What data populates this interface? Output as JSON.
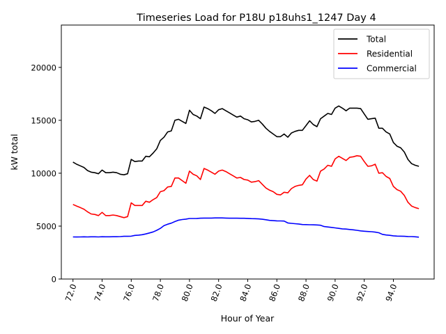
{
  "chart_data": {
    "type": "line",
    "title": "Timeseries Load for P18U p18uhs1_1247  Day 4",
    "xlabel": "Hour of Year",
    "ylabel": "kW total",
    "xlim": [
      71.2,
      96.8
    ],
    "ylim": [
      0,
      24000
    ],
    "xticks": [
      72,
      74,
      76,
      78,
      80,
      82,
      84,
      86,
      88,
      90,
      92,
      94
    ],
    "xtick_labels": [
      "72.0",
      "74.0",
      "76.0",
      "78.0",
      "80.0",
      "82.0",
      "84.0",
      "86.0",
      "88.0",
      "90.0",
      "92.0",
      "94.0"
    ],
    "yticks": [
      0,
      5000,
      10000,
      15000,
      20000
    ],
    "ytick_labels": [
      "0",
      "5000",
      "10000",
      "15000",
      "20000"
    ],
    "legend_position": "top-right",
    "x": [
      72.0,
      72.25,
      72.5,
      72.75,
      73.0,
      73.25,
      73.5,
      73.75,
      74.0,
      74.25,
      74.5,
      74.75,
      75.0,
      75.25,
      75.5,
      75.75,
      76.0,
      76.25,
      76.5,
      76.75,
      77.0,
      77.25,
      77.5,
      77.75,
      78.0,
      78.25,
      78.5,
      78.75,
      79.0,
      79.25,
      79.5,
      79.75,
      80.0,
      80.25,
      80.5,
      80.75,
      81.0,
      81.25,
      81.5,
      81.75,
      82.0,
      82.25,
      82.5,
      82.75,
      83.0,
      83.25,
      83.5,
      83.75,
      84.0,
      84.25,
      84.5,
      84.75,
      85.0,
      85.25,
      85.5,
      85.75,
      86.0,
      86.25,
      86.5,
      86.75,
      87.0,
      87.25,
      87.5,
      87.75,
      88.0,
      88.25,
      88.5,
      88.75,
      89.0,
      89.25,
      89.5,
      89.75,
      90.0,
      90.25,
      90.5,
      90.75,
      91.0,
      91.25,
      91.5,
      91.75,
      92.0,
      92.25,
      92.5,
      92.75,
      93.0,
      93.25,
      93.5,
      93.75,
      94.0,
      94.25,
      94.5,
      94.75,
      95.0,
      95.25,
      95.5,
      95.75
    ],
    "series": [
      {
        "name": "Total",
        "color": "#000000",
        "values": [
          11050,
          10850,
          10700,
          10550,
          10250,
          10100,
          10050,
          9950,
          10300,
          10050,
          10050,
          10100,
          10050,
          9900,
          9850,
          9950,
          11300,
          11100,
          11150,
          11150,
          11600,
          11550,
          11900,
          12300,
          13100,
          13400,
          13900,
          14000,
          15000,
          15100,
          14900,
          14700,
          15950,
          15550,
          15400,
          15150,
          16250,
          16100,
          15900,
          15650,
          16000,
          16100,
          15900,
          15700,
          15500,
          15300,
          15400,
          15150,
          15050,
          14850,
          14900,
          15000,
          14650,
          14250,
          13950,
          13700,
          13450,
          13450,
          13700,
          13400,
          13800,
          13950,
          14050,
          14050,
          14500,
          14950,
          14600,
          14400,
          15150,
          15400,
          15650,
          15550,
          16150,
          16350,
          16150,
          15900,
          16150,
          16150,
          16150,
          16100,
          15600,
          15100,
          15150,
          15200,
          14250,
          14250,
          13900,
          13700,
          12900,
          12550,
          12400,
          12000,
          11300,
          10900,
          10750,
          10650
        ]
      },
      {
        "name": "Residential",
        "color": "#ff0000",
        "values": [
          7050,
          6900,
          6750,
          6600,
          6350,
          6150,
          6100,
          6000,
          6300,
          6000,
          6000,
          6050,
          6000,
          5900,
          5800,
          5900,
          7200,
          6950,
          6950,
          6950,
          7350,
          7250,
          7500,
          7700,
          8250,
          8350,
          8700,
          8750,
          9550,
          9550,
          9300,
          9050,
          10200,
          9900,
          9750,
          9400,
          10450,
          10300,
          10100,
          9900,
          10200,
          10300,
          10150,
          9950,
          9750,
          9550,
          9600,
          9400,
          9350,
          9150,
          9200,
          9300,
          8950,
          8600,
          8400,
          8250,
          8000,
          7950,
          8200,
          8150,
          8550,
          8750,
          8850,
          8900,
          9450,
          9800,
          9400,
          9250,
          10200,
          10400,
          10750,
          10650,
          11350,
          11600,
          11400,
          11200,
          11500,
          11550,
          11650,
          11600,
          11100,
          10650,
          10700,
          10850,
          10000,
          10050,
          9700,
          9500,
          8750,
          8450,
          8300,
          7900,
          7250,
          6900,
          6750,
          6650
        ]
      },
      {
        "name": "Commercial",
        "color": "#0000ff",
        "values": [
          3980,
          3970,
          3980,
          3990,
          3980,
          3990,
          3990,
          3980,
          4000,
          3990,
          3990,
          4000,
          4000,
          4010,
          4040,
          4040,
          4050,
          4120,
          4150,
          4190,
          4260,
          4350,
          4450,
          4600,
          4790,
          5050,
          5180,
          5280,
          5430,
          5560,
          5620,
          5660,
          5720,
          5720,
          5730,
          5750,
          5760,
          5760,
          5760,
          5770,
          5770,
          5770,
          5760,
          5750,
          5750,
          5750,
          5740,
          5740,
          5730,
          5710,
          5700,
          5680,
          5650,
          5600,
          5540,
          5520,
          5500,
          5490,
          5480,
          5300,
          5260,
          5230,
          5200,
          5150,
          5140,
          5130,
          5120,
          5110,
          5080,
          4960,
          4920,
          4880,
          4830,
          4790,
          4740,
          4720,
          4680,
          4650,
          4600,
          4550,
          4520,
          4490,
          4470,
          4430,
          4370,
          4220,
          4160,
          4130,
          4080,
          4060,
          4050,
          4040,
          4020,
          4010,
          3990,
          3960
        ]
      }
    ]
  }
}
